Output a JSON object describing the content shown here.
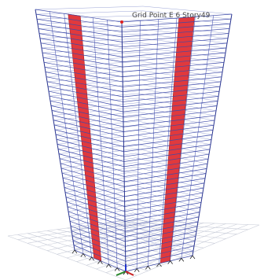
{
  "viewport": {
    "label": "Grid Point E 6 Story49"
  }
}
